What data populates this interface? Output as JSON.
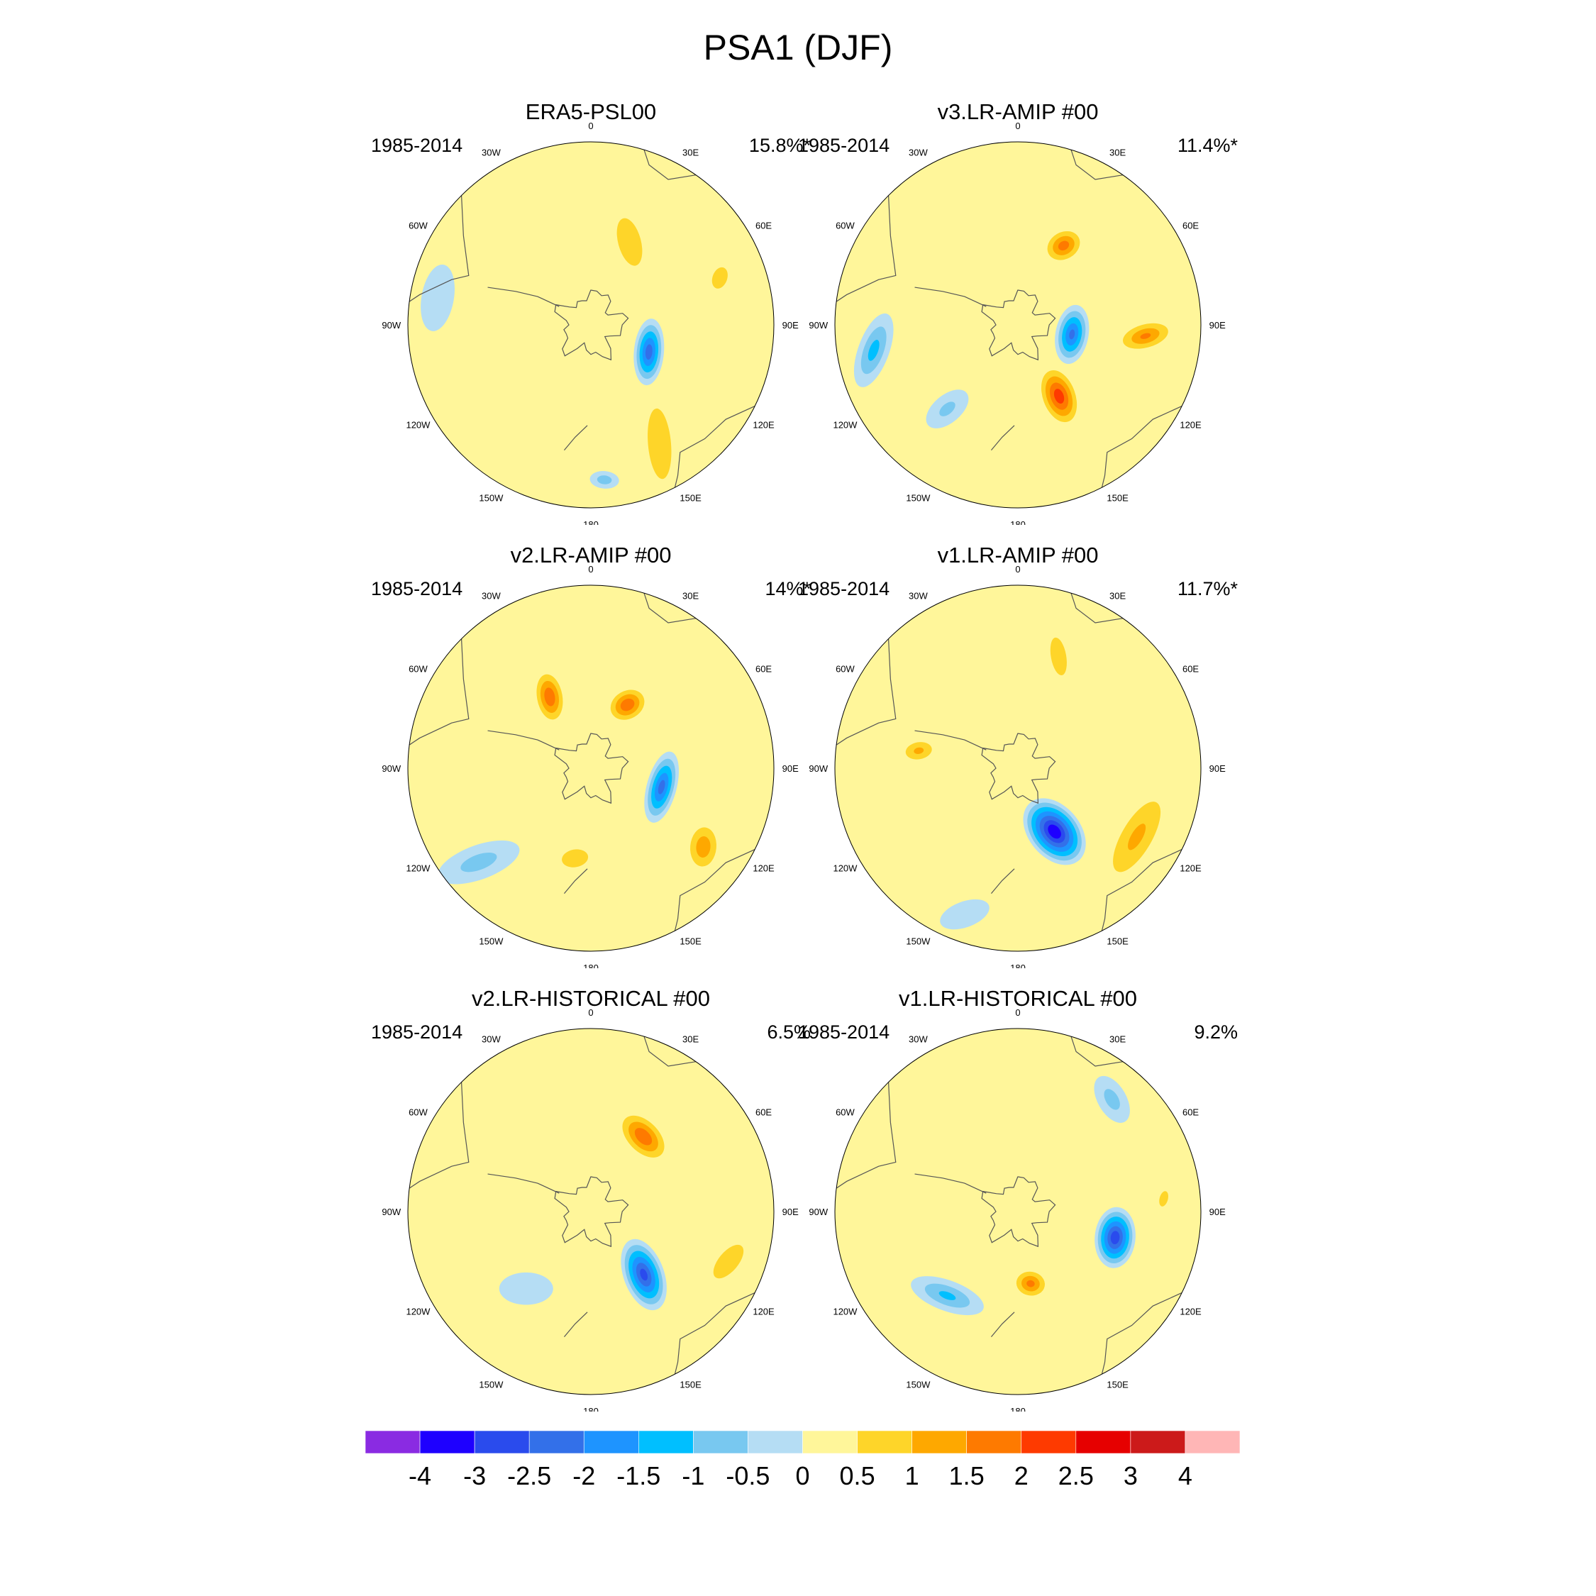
{
  "figure": {
    "title": "PSA1 (DJF)"
  },
  "panels": [
    {
      "title": "ERA5-PSL00",
      "years": "1985-2014",
      "percent": "15.8%*",
      "blobs": [
        {
          "lon": 115,
          "r": 0.35,
          "a": 0.2,
          "b": 0.09,
          "rot": 30,
          "v": -2.6
        },
        {
          "lon": 150,
          "r": 0.75,
          "a": 0.4,
          "b": 0.13,
          "rot": 55,
          "v": 1.2
        },
        {
          "lon": 25,
          "r": 0.5,
          "a": 0.3,
          "b": 0.14,
          "rot": 100,
          "v": 1.1
        },
        {
          "lon": 70,
          "r": 0.75,
          "a": 0.15,
          "b": 0.1,
          "rot": 0,
          "v": 1.0
        },
        {
          "lon": -80,
          "r": 0.85,
          "a": 0.25,
          "b": 0.12,
          "rot": 20,
          "v": -0.7
        },
        {
          "lon": 175,
          "r": 0.85,
          "a": 0.1,
          "b": 0.06,
          "rot": 0,
          "v": -1.0
        }
      ]
    },
    {
      "title": "v3.LR-AMIP  #00",
      "years": "1985-2014",
      "percent": "11.4%*",
      "blobs": [
        {
          "lon": 100,
          "r": 0.3,
          "a": 0.18,
          "b": 0.1,
          "rot": 20,
          "v": -2.4
        },
        {
          "lon": 150,
          "r": 0.45,
          "a": 0.2,
          "b": 0.12,
          "rot": 40,
          "v": 2.6
        },
        {
          "lon": 30,
          "r": 0.5,
          "a": 0.14,
          "b": 0.11,
          "rot": 0,
          "v": 2.0
        },
        {
          "lon": 95,
          "r": 0.7,
          "a": 0.2,
          "b": 0.1,
          "rot": 80,
          "v": 1.8
        },
        {
          "lon": -100,
          "r": 0.8,
          "a": 0.25,
          "b": 0.1,
          "rot": 10,
          "v": -1.4
        },
        {
          "lon": -140,
          "r": 0.6,
          "a": 0.18,
          "b": 0.1,
          "rot": 0,
          "v": -0.8
        }
      ]
    },
    {
      "title": "v2.LR-AMIP  #00",
      "years": "1985-2014",
      "percent": "14%*",
      "blobs": [
        {
          "lon": 105,
          "r": 0.4,
          "a": 0.22,
          "b": 0.09,
          "rot": 30,
          "v": -2.5
        },
        {
          "lon": 30,
          "r": 0.4,
          "a": 0.14,
          "b": 0.11,
          "rot": 0,
          "v": 2.2
        },
        {
          "lon": -30,
          "r": 0.45,
          "a": 0.18,
          "b": 0.1,
          "rot": 50,
          "v": 2.2
        },
        {
          "lon": 125,
          "r": 0.75,
          "a": 0.18,
          "b": 0.12,
          "rot": 40,
          "v": 1.6
        },
        {
          "lon": -170,
          "r": 0.5,
          "a": 0.15,
          "b": 0.1,
          "rot": 0,
          "v": 1.2
        },
        {
          "lon": -130,
          "r": 0.8,
          "a": 0.3,
          "b": 0.12,
          "rot": 30,
          "v": -0.9
        }
      ]
    },
    {
      "title": "v1.LR-AMIP  #00",
      "years": "1985-2014",
      "percent": "11.7%*",
      "blobs": [
        {
          "lon": 150,
          "r": 0.4,
          "a": 0.22,
          "b": 0.15,
          "rot": 20,
          "v": -3.8
        },
        {
          "lon": 120,
          "r": 0.75,
          "a": 0.42,
          "b": 0.16,
          "rot": 60,
          "v": 1.3
        },
        {
          "lon": -80,
          "r": 0.55,
          "a": 0.14,
          "b": 0.09,
          "rot": 90,
          "v": 1.3
        },
        {
          "lon": 20,
          "r": 0.65,
          "a": 0.3,
          "b": 0.12,
          "rot": 100,
          "v": 0.9
        },
        {
          "lon": -160,
          "r": 0.85,
          "a": 0.2,
          "b": 0.1,
          "rot": 0,
          "v": -0.6
        }
      ]
    },
    {
      "title": "v2.LR-HISTORICAL  #00",
      "years": "1985-2014",
      "percent": "6.5%",
      "blobs": [
        {
          "lon": 140,
          "r": 0.45,
          "a": 0.22,
          "b": 0.12,
          "rot": 30,
          "v": -3.0
        },
        {
          "lon": 35,
          "r": 0.5,
          "a": 0.2,
          "b": 0.12,
          "rot": 80,
          "v": 2.2
        },
        {
          "lon": 110,
          "r": 0.8,
          "a": 0.25,
          "b": 0.12,
          "rot": 60,
          "v": 1.1
        },
        {
          "lon": -140,
          "r": 0.55,
          "a": 0.2,
          "b": 0.12,
          "rot": 40,
          "v": -0.7
        }
      ]
    },
    {
      "title": "v1.LR-HISTORICAL  #00",
      "years": "1985-2014",
      "percent": "9.2%",
      "blobs": [
        {
          "lon": 105,
          "r": 0.55,
          "a": 0.18,
          "b": 0.12,
          "rot": 20,
          "v": -3.2
        },
        {
          "lon": 170,
          "r": 0.4,
          "a": 0.12,
          "b": 0.1,
          "rot": 0,
          "v": 1.9
        },
        {
          "lon": -140,
          "r": 0.6,
          "a": 0.25,
          "b": 0.1,
          "rot": 60,
          "v": -1.3
        },
        {
          "lon": 40,
          "r": 0.8,
          "a": 0.18,
          "b": 0.1,
          "rot": 100,
          "v": -0.9
        },
        {
          "lon": 85,
          "r": 0.8,
          "a": 0.15,
          "b": 0.08,
          "rot": 10,
          "v": 0.8
        }
      ]
    }
  ],
  "lon_labels": [
    "0",
    "30E",
    "60E",
    "90E",
    "120E",
    "150E",
    "180",
    "150W",
    "120W",
    "90W",
    "60W",
    "30W"
  ],
  "colorbar": {
    "colors": [
      "#8a2be2",
      "#1e00ff",
      "#2a4bed",
      "#3370e9",
      "#1e94ff",
      "#00bfff",
      "#78c8f0",
      "#b5ddf4",
      "#fff69a",
      "#fed529",
      "#fea800",
      "#fe7a00",
      "#fe3a00",
      "#e60000",
      "#cc1a1a",
      "#ffb6b6"
    ],
    "labels": [
      "-4",
      "-3",
      "-2.5",
      "-2",
      "-1.5",
      "-1",
      "-0.5",
      "0",
      "0.5",
      "1",
      "1.5",
      "2",
      "2.5",
      "3",
      "4"
    ],
    "levels": [
      -4,
      -3,
      -2.5,
      -2,
      -1.5,
      -1,
      -0.5,
      0,
      0.5,
      1,
      1.5,
      2,
      2.5,
      3,
      4
    ]
  }
}
